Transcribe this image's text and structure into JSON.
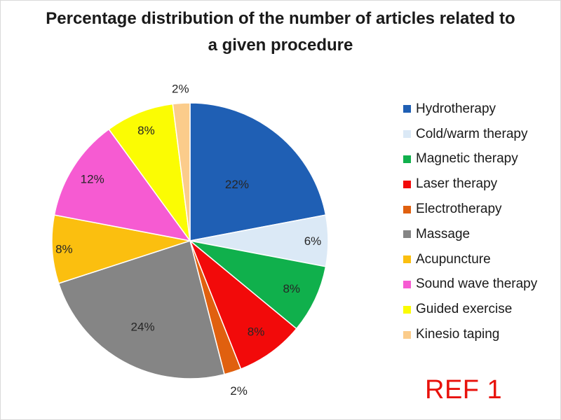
{
  "title_line1": "Percentage distribution of the number of articles related to",
  "title_line2": "a given procedure",
  "ref_label": "REF 1",
  "chart_data": {
    "type": "pie",
    "title": "Percentage distribution of the number of articles related to a given procedure",
    "start_angle": "12 o'clock, clockwise",
    "legend_position": "right",
    "slices": [
      {
        "label": "Hydrotherapy",
        "value": 22,
        "value_label": "22%",
        "color": "#1f5fb4"
      },
      {
        "label": "Cold/warm therapy",
        "value": 6,
        "value_label": "6%",
        "color": "#dbe9f6"
      },
      {
        "label": "Magnetic therapy",
        "value": 8,
        "value_label": "8%",
        "color": "#10b04c"
      },
      {
        "label": "Laser therapy",
        "value": 8,
        "value_label": "8%",
        "color": "#f20a0a"
      },
      {
        "label": "Electrotherapy",
        "value": 2,
        "value_label": "2%",
        "color": "#e0600f"
      },
      {
        "label": "Massage",
        "value": 24,
        "value_label": "24%",
        "color": "#858585"
      },
      {
        "label": "Acupuncture",
        "value": 8,
        "value_label": "8%",
        "color": "#fbbf0f"
      },
      {
        "label": "Sound wave therapy",
        "value": 12,
        "value_label": "12%",
        "color": "#f65bd2"
      },
      {
        "label": "Guided exercise",
        "value": 8,
        "value_label": "8%",
        "color": "#fbfc03"
      },
      {
        "label": "Kinesio taping",
        "value": 2,
        "value_label": "2%",
        "color": "#fbcc8b"
      }
    ]
  }
}
